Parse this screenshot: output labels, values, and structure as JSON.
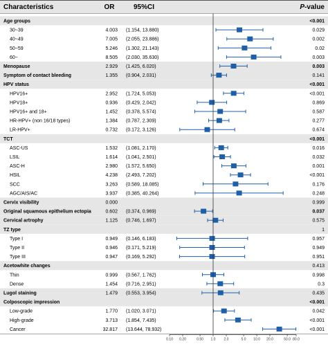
{
  "chart_data": {
    "type": "forest",
    "headers": {
      "characteristics": "Characteristics",
      "or": "OR",
      "ci": "95%CI",
      "p_value_italic": "P",
      "p_value_rest": "-value"
    },
    "x_axis": {
      "scale": "log",
      "xlim": [
        0.1,
        80
      ],
      "ticks": [
        0.1,
        0.2,
        0.5,
        1,
        2,
        5,
        10,
        20,
        50,
        80
      ],
      "tick_labels": [
        "0.10",
        "0.20",
        "0.50",
        "1.0",
        "2.0",
        "5.0",
        "10.0",
        "20.0",
        "50.0",
        "80.0"
      ],
      "reference_line": 1
    },
    "colors": {
      "marker": "#1f5fa8",
      "shade": "#e6e6e6",
      "rule": "#888888"
    },
    "rows": [
      {
        "label": "Age groups",
        "indent": false,
        "bold": true,
        "header": true,
        "or": "",
        "ci": "",
        "p": "<0.001",
        "p_bold": true
      },
      {
        "label": "30~39",
        "indent": true,
        "bold": false,
        "header": false,
        "or": "4.003",
        "ci": "(1.154, 13.880)",
        "p": "0.029",
        "p_bold": false,
        "est": 4.003,
        "lo": 1.154,
        "hi": 13.88
      },
      {
        "label": "40~49",
        "indent": true,
        "bold": false,
        "header": false,
        "or": "7.005",
        "ci": "(2.055, 23.886)",
        "p": "0.002",
        "p_bold": false,
        "est": 7.005,
        "lo": 2.055,
        "hi": 23.886
      },
      {
        "label": "50~59",
        "indent": true,
        "bold": false,
        "header": false,
        "or": "5.246",
        "ci": "(1.302, 21.143)",
        "p": "0.02",
        "p_bold": false,
        "est": 5.246,
        "lo": 1.302,
        "hi": 21.143
      },
      {
        "label": "60~",
        "indent": true,
        "bold": false,
        "header": false,
        "or": "8.505",
        "ci": "(2.030, 35.630)",
        "p": "0.003",
        "p_bold": false,
        "est": 8.505,
        "lo": 2.03,
        "hi": 35.63
      },
      {
        "label": "Menopause",
        "indent": false,
        "bold": true,
        "header": false,
        "or": "2.929",
        "ci": "(1.425, 6.020)",
        "p": "0.003",
        "p_bold": true,
        "est": 2.929,
        "lo": 1.425,
        "hi": 6.02
      },
      {
        "label": "Symptom of contact bleeding",
        "indent": false,
        "bold": true,
        "header": false,
        "or": "1.355",
        "ci": "(0.904, 2.031)",
        "p": "0.141",
        "p_bold": false,
        "est": 1.355,
        "lo": 0.904,
        "hi": 2.031
      },
      {
        "label": "HPV status",
        "indent": false,
        "bold": true,
        "header": true,
        "or": "",
        "ci": "",
        "p": "<0.001",
        "p_bold": true
      },
      {
        "label": "HPV16+",
        "indent": true,
        "bold": false,
        "header": false,
        "or": "2.952",
        "ci": "(1.724, 5.053)",
        "p": "<0.001",
        "p_bold": false,
        "est": 2.952,
        "lo": 1.724,
        "hi": 5.053
      },
      {
        "label": "HPV18+",
        "indent": true,
        "bold": false,
        "header": false,
        "or": "0.936",
        "ci": "(0.429, 2.042)",
        "p": "0.869",
        "p_bold": false,
        "est": 0.936,
        "lo": 0.429,
        "hi": 2.042
      },
      {
        "label": "HPV16+ and 18+",
        "indent": true,
        "bold": false,
        "header": false,
        "or": "1.452",
        "ci": "(0.378, 5.574)",
        "p": "0.587",
        "p_bold": false,
        "est": 1.452,
        "lo": 0.378,
        "hi": 5.574
      },
      {
        "label": "HR-HPV+ (non 16/18 types)",
        "indent": true,
        "bold": false,
        "header": false,
        "or": "1.384",
        "ci": "(0.787, 2.309)",
        "p": "0.277",
        "p_bold": false,
        "est": 1.384,
        "lo": 0.787,
        "hi": 2.309
      },
      {
        "label": "LR-HPV+",
        "indent": true,
        "bold": false,
        "header": false,
        "or": "0.732",
        "ci": "(0.172, 3.126)",
        "p": "0.674",
        "p_bold": false,
        "est": 0.732,
        "lo": 0.172,
        "hi": 3.126
      },
      {
        "label": "TCT",
        "indent": false,
        "bold": true,
        "header": true,
        "or": "",
        "ci": "",
        "p": "<0.001",
        "p_bold": true
      },
      {
        "label": "ASC-US",
        "indent": true,
        "bold": false,
        "header": false,
        "or": "1.532",
        "ci": "(1.081, 2.170)",
        "p": "0.016",
        "p_bold": false,
        "est": 1.532,
        "lo": 1.081,
        "hi": 2.17
      },
      {
        "label": "LSIL",
        "indent": true,
        "bold": false,
        "header": false,
        "or": "1.614",
        "ci": "(1.041, 2.501)",
        "p": "0.032",
        "p_bold": false,
        "est": 1.614,
        "lo": 1.041,
        "hi": 2.501
      },
      {
        "label": "ASC-H",
        "indent": true,
        "bold": false,
        "header": false,
        "or": "2.980",
        "ci": "(1.572, 5.650)",
        "p": "0.001",
        "p_bold": false,
        "est": 2.98,
        "lo": 1.572,
        "hi": 5.65
      },
      {
        "label": "HSIL",
        "indent": true,
        "bold": false,
        "header": false,
        "or": "4.238",
        "ci": "(2.493, 7.202)",
        "p": "<0.001",
        "p_bold": false,
        "est": 4.238,
        "lo": 2.493,
        "hi": 7.202
      },
      {
        "label": "SCC",
        "indent": true,
        "bold": false,
        "header": false,
        "or": "3.263",
        "ci": "(0.589, 18.085)",
        "p": "0.176",
        "p_bold": false,
        "est": 3.263,
        "lo": 0.589,
        "hi": 18.085
      },
      {
        "label": "AGC/AIS/AC",
        "indent": true,
        "bold": false,
        "header": false,
        "or": "3.937",
        "ci": "(0.385, 40.264)",
        "p": "0.248",
        "p_bold": false,
        "est": 3.937,
        "lo": 0.385,
        "hi": 40.264
      },
      {
        "label": "Cervix visibility",
        "indent": false,
        "bold": true,
        "header": false,
        "or": "0.000",
        "ci": "",
        "p": "0.999",
        "p_bold": false
      },
      {
        "label": "Original squamous epithelium ectopia",
        "indent": false,
        "bold": true,
        "header": false,
        "or": "0.602",
        "ci": "(0.374, 0.969)",
        "p": "0.037",
        "p_bold": true,
        "est": 0.602,
        "lo": 0.374,
        "hi": 0.969
      },
      {
        "label": "Cervical artrophy",
        "indent": false,
        "bold": true,
        "header": false,
        "or": "1.125",
        "ci": "(0.746, 1.697)",
        "p": "0.575",
        "p_bold": false,
        "est": 1.125,
        "lo": 0.746,
        "hi": 1.697
      },
      {
        "label": "TZ type",
        "indent": false,
        "bold": true,
        "header": true,
        "or": "",
        "ci": "",
        "p": "1",
        "p_bold": false
      },
      {
        "label": "Type I",
        "indent": true,
        "bold": false,
        "header": false,
        "or": "0.949",
        "ci": "(0.146, 6.183)",
        "p": "0.957",
        "p_bold": false,
        "est": 0.949,
        "lo": 0.146,
        "hi": 6.183
      },
      {
        "label": "Type II",
        "indent": true,
        "bold": false,
        "header": false,
        "or": "0.946",
        "ci": "(0.171, 5.219)",
        "p": "0.949",
        "p_bold": false,
        "est": 0.946,
        "lo": 0.171,
        "hi": 5.219
      },
      {
        "label": "Type III",
        "indent": true,
        "bold": false,
        "header": false,
        "or": "0.947",
        "ci": "(0.169, 5.292)",
        "p": "0.951",
        "p_bold": false,
        "est": 0.947,
        "lo": 0.169,
        "hi": 5.292
      },
      {
        "label": "Acetowhite changes",
        "indent": false,
        "bold": true,
        "header": true,
        "or": "",
        "ci": "",
        "p": "0.413",
        "p_bold": false
      },
      {
        "label": "Thin",
        "indent": true,
        "bold": false,
        "header": false,
        "or": "0.999",
        "ci": "(0.567, 1.762)",
        "p": "0.998",
        "p_bold": false,
        "est": 0.999,
        "lo": 0.567,
        "hi": 1.762
      },
      {
        "label": "Dense",
        "indent": true,
        "bold": false,
        "header": false,
        "or": "1.454",
        "ci": "(0.716, 2.951)",
        "p": "0.3",
        "p_bold": false,
        "est": 1.454,
        "lo": 0.716,
        "hi": 2.951
      },
      {
        "label": "Lugol staining",
        "indent": false,
        "bold": true,
        "header": false,
        "or": "1.479",
        "ci": "(0.553, 3.954)",
        "p": "0.435",
        "p_bold": false,
        "est": 1.479,
        "lo": 0.553,
        "hi": 3.954
      },
      {
        "label": "Colposcopic impression",
        "indent": false,
        "bold": true,
        "header": true,
        "or": "",
        "ci": "",
        "p": "<0.001",
        "p_bold": true
      },
      {
        "label": "Low-grade",
        "indent": true,
        "bold": false,
        "header": false,
        "or": "1.770",
        "ci": "(1.020, 3.071)",
        "p": "0.042",
        "p_bold": false,
        "est": 1.77,
        "lo": 1.02,
        "hi": 3.071
      },
      {
        "label": "High-grade",
        "indent": true,
        "bold": false,
        "header": false,
        "or": "3.713",
        "ht": 0,
        "ci": "(1.854, 7.435)",
        "p": "<0.001",
        "p_bold": false,
        "est": 3.713,
        "lo": 1.854,
        "hi": 7.435
      },
      {
        "label": "Cancer",
        "indent": true,
        "bold": false,
        "header": false,
        "or": "32.817",
        "ci": "(13.644, 78.932)",
        "p": "<0.001",
        "p_bold": false,
        "est": 32.817,
        "lo": 13.644,
        "hi": 78.932
      }
    ]
  }
}
